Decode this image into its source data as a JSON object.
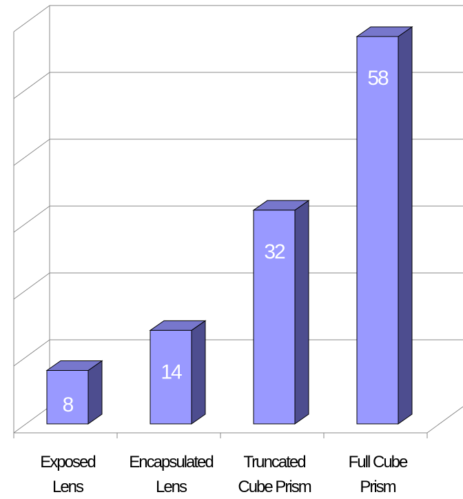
{
  "chart_data": {
    "type": "bar",
    "title": "",
    "xlabel": "",
    "ylabel": "",
    "categories": [
      [
        "Exposed",
        "Lens"
      ],
      [
        "Encapsulated",
        "Lens"
      ],
      [
        "Truncated",
        "Cube Prism"
      ],
      [
        "Full Cube",
        "Prism"
      ]
    ],
    "values": [
      8,
      14,
      32,
      58
    ],
    "ylim": [
      0,
      60
    ],
    "y_gridline_step": 10,
    "grid": true,
    "data_labels": [
      "8",
      "14",
      "32",
      "58"
    ],
    "style": "3d-column",
    "colors": {
      "bar_front": "#9999ff",
      "bar_side": "#4d4d8f",
      "bar_top": "#7777cc",
      "outline": "#000000",
      "grid": "#888888",
      "value_label": "#ffffff"
    }
  }
}
